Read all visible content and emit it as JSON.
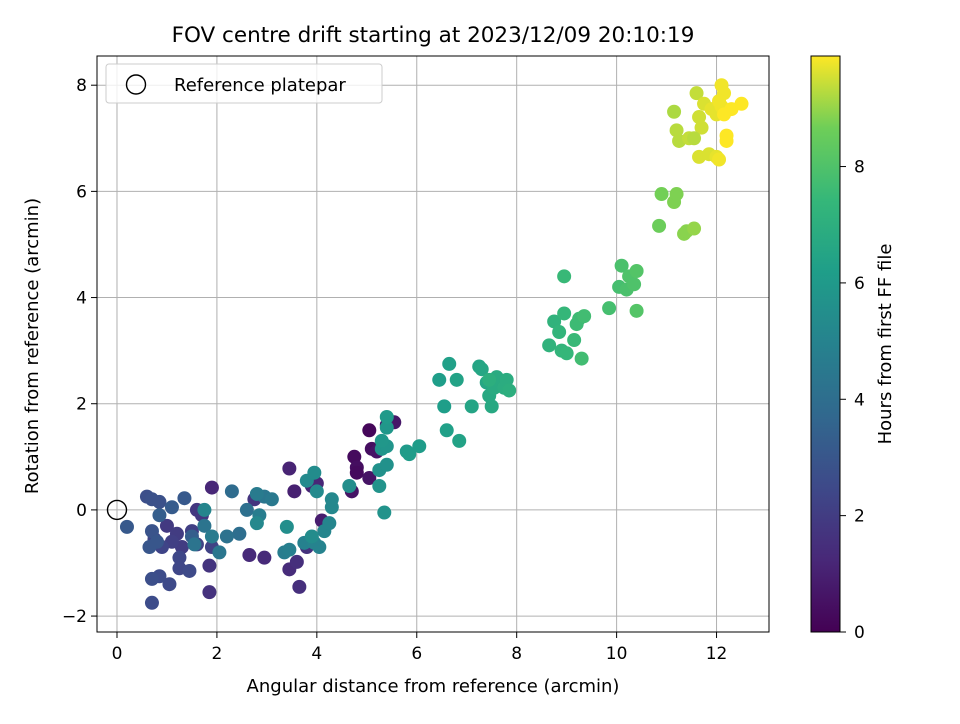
{
  "chart_data": {
    "type": "scatter",
    "title": "FOV centre drift starting at 2023/12/09 20:10:19",
    "xlabel": "Angular distance from reference (arcmin)",
    "ylabel": "Rotation from reference (arcmin)",
    "xlim": [
      -0.4,
      13.05
    ],
    "ylim": [
      -2.3,
      8.55
    ],
    "xticks": [
      0,
      2,
      4,
      6,
      8,
      10,
      12
    ],
    "yticks": [
      -2,
      0,
      2,
      4,
      6,
      8
    ],
    "grid": true,
    "legend": {
      "placement": "top-left",
      "entries": [
        {
          "label": "Reference platepar",
          "marker": "open-circle"
        }
      ]
    },
    "reference_point": {
      "x": 0,
      "y": 0
    },
    "colorbar": {
      "label": "Hours from first FF file",
      "colormap": "viridis",
      "range": [
        0,
        9.9
      ],
      "ticks": [
        0,
        2,
        4,
        6,
        8
      ]
    },
    "series": [
      {
        "color_by": "hours",
        "points": [
          {
            "x": 4.75,
            "y": 1.0,
            "c": 0.3
          },
          {
            "x": 4.8,
            "y": 0.8,
            "c": 0.4
          },
          {
            "x": 4.8,
            "y": 0.7,
            "c": 0.3
          },
          {
            "x": 5.05,
            "y": 1.5,
            "c": 0.2
          },
          {
            "x": 5.1,
            "y": 1.15,
            "c": 0.4
          },
          {
            "x": 5.2,
            "y": 1.1,
            "c": 0.6
          },
          {
            "x": 5.55,
            "y": 1.65,
            "c": 0.7
          },
          {
            "x": 5.4,
            "y": 1.6,
            "c": 0.8
          },
          {
            "x": 4.7,
            "y": 0.35,
            "c": 0.6
          },
          {
            "x": 5.05,
            "y": 0.6,
            "c": 0.6
          },
          {
            "x": 4.1,
            "y": -0.2,
            "c": 0.9
          },
          {
            "x": 3.55,
            "y": 0.35,
            "c": 1.0
          },
          {
            "x": 3.45,
            "y": 0.78,
            "c": 1.1
          },
          {
            "x": 3.9,
            "y": 0.45,
            "c": 1.1
          },
          {
            "x": 4.0,
            "y": 0.5,
            "c": 1.2
          },
          {
            "x": 1.9,
            "y": 0.42,
            "c": 1.2
          },
          {
            "x": 2.65,
            "y": -0.85,
            "c": 1.3
          },
          {
            "x": 2.95,
            "y": -0.9,
            "c": 1.3
          },
          {
            "x": 3.45,
            "y": -1.12,
            "c": 1.4
          },
          {
            "x": 3.65,
            "y": -1.45,
            "c": 1.5
          },
          {
            "x": 3.6,
            "y": -0.98,
            "c": 1.5
          },
          {
            "x": 3.8,
            "y": -0.7,
            "c": 1.6
          },
          {
            "x": 1.85,
            "y": -1.55,
            "c": 1.6
          },
          {
            "x": 1.85,
            "y": -1.05,
            "c": 1.7
          },
          {
            "x": 2.75,
            "y": 0.2,
            "c": 1.7
          },
          {
            "x": 1.6,
            "y": 0.0,
            "c": 1.8
          },
          {
            "x": 1.7,
            "y": -0.1,
            "c": 1.8
          },
          {
            "x": 1.0,
            "y": -0.3,
            "c": 1.9
          },
          {
            "x": 1.2,
            "y": -0.45,
            "c": 2.0
          },
          {
            "x": 1.3,
            "y": -0.7,
            "c": 2.0
          },
          {
            "x": 1.5,
            "y": -0.4,
            "c": 2.1
          },
          {
            "x": 1.1,
            "y": -0.6,
            "c": 2.1
          },
          {
            "x": 1.6,
            "y": -0.65,
            "c": 2.2
          },
          {
            "x": 1.9,
            "y": -0.7,
            "c": 2.2
          },
          {
            "x": 0.75,
            "y": -0.55,
            "c": 2.3
          },
          {
            "x": 0.9,
            "y": -0.7,
            "c": 2.3
          },
          {
            "x": 1.25,
            "y": -0.9,
            "c": 2.4
          },
          {
            "x": 1.25,
            "y": -1.1,
            "c": 2.4
          },
          {
            "x": 1.45,
            "y": -1.15,
            "c": 2.5
          },
          {
            "x": 1.05,
            "y": -1.4,
            "c": 2.5
          },
          {
            "x": 0.85,
            "y": -1.25,
            "c": 2.6
          },
          {
            "x": 0.7,
            "y": -1.75,
            "c": 2.6
          },
          {
            "x": 0.7,
            "y": -1.3,
            "c": 2.7
          },
          {
            "x": 0.6,
            "y": 0.25,
            "c": 2.7
          },
          {
            "x": 0.7,
            "y": 0.2,
            "c": 2.8
          },
          {
            "x": 0.85,
            "y": 0.15,
            "c": 2.8
          },
          {
            "x": 0.7,
            "y": -0.4,
            "c": 2.9
          },
          {
            "x": 0.65,
            "y": -0.7,
            "c": 3.0
          },
          {
            "x": 0.8,
            "y": -0.6,
            "c": 3.0
          },
          {
            "x": 0.2,
            "y": -0.32,
            "c": 3.1
          },
          {
            "x": 1.35,
            "y": 0.22,
            "c": 3.1
          },
          {
            "x": 1.1,
            "y": 0.05,
            "c": 3.2
          },
          {
            "x": 0.85,
            "y": -0.1,
            "c": 3.3
          },
          {
            "x": 1.5,
            "y": -0.5,
            "c": 3.3
          },
          {
            "x": 2.3,
            "y": 0.35,
            "c": 3.9
          },
          {
            "x": 2.45,
            "y": -0.45,
            "c": 4.0
          },
          {
            "x": 2.6,
            "y": 0.0,
            "c": 4.1
          },
          {
            "x": 2.2,
            "y": -0.5,
            "c": 4.2
          },
          {
            "x": 1.55,
            "y": -0.65,
            "c": 4.3
          },
          {
            "x": 1.75,
            "y": -0.3,
            "c": 4.3
          },
          {
            "x": 2.05,
            "y": -0.8,
            "c": 4.4
          },
          {
            "x": 2.95,
            "y": 0.25,
            "c": 4.4
          },
          {
            "x": 3.1,
            "y": 0.2,
            "c": 4.5
          },
          {
            "x": 1.9,
            "y": -0.5,
            "c": 4.6
          },
          {
            "x": 2.8,
            "y": 0.3,
            "c": 4.6
          },
          {
            "x": 2.85,
            "y": -0.1,
            "c": 4.7
          },
          {
            "x": 3.35,
            "y": -0.8,
            "c": 4.7
          },
          {
            "x": 3.45,
            "y": -0.75,
            "c": 4.8
          },
          {
            "x": 3.75,
            "y": -0.62,
            "c": 4.9
          },
          {
            "x": 3.95,
            "y": -0.62,
            "c": 5.0
          },
          {
            "x": 4.05,
            "y": -0.7,
            "c": 5.0
          },
          {
            "x": 4.15,
            "y": -0.4,
            "c": 5.1
          },
          {
            "x": 4.25,
            "y": -0.25,
            "c": 5.1
          },
          {
            "x": 4.3,
            "y": 0.05,
            "c": 5.2
          },
          {
            "x": 4.3,
            "y": 0.2,
            "c": 5.2
          },
          {
            "x": 4.0,
            "y": 0.35,
            "c": 5.3
          },
          {
            "x": 3.8,
            "y": 0.55,
            "c": 5.3
          },
          {
            "x": 3.95,
            "y": 0.7,
            "c": 5.4
          },
          {
            "x": 3.9,
            "y": -0.5,
            "c": 5.4
          },
          {
            "x": 3.4,
            "y": -0.32,
            "c": 5.5
          },
          {
            "x": 2.8,
            "y": -0.25,
            "c": 5.2
          },
          {
            "x": 1.75,
            "y": 0.0,
            "c": 5.1
          },
          {
            "x": 4.65,
            "y": 0.45,
            "c": 5.5
          },
          {
            "x": 5.25,
            "y": 0.75,
            "c": 5.6
          },
          {
            "x": 5.4,
            "y": 0.85,
            "c": 5.6
          },
          {
            "x": 5.25,
            "y": 0.45,
            "c": 5.7
          },
          {
            "x": 5.35,
            "y": -0.05,
            "c": 5.7
          },
          {
            "x": 5.3,
            "y": 1.15,
            "c": 5.8
          },
          {
            "x": 5.4,
            "y": 1.2,
            "c": 5.8
          },
          {
            "x": 5.3,
            "y": 1.3,
            "c": 5.9
          },
          {
            "x": 5.4,
            "y": 1.55,
            "c": 5.9
          },
          {
            "x": 5.4,
            "y": 1.75,
            "c": 6.0
          },
          {
            "x": 5.8,
            "y": 1.1,
            "c": 6.0
          },
          {
            "x": 5.85,
            "y": 1.05,
            "c": 6.1
          },
          {
            "x": 6.05,
            "y": 1.2,
            "c": 6.1
          },
          {
            "x": 6.45,
            "y": 2.45,
            "c": 6.2
          },
          {
            "x": 6.55,
            "y": 1.95,
            "c": 6.2
          },
          {
            "x": 6.6,
            "y": 1.5,
            "c": 6.3
          },
          {
            "x": 6.65,
            "y": 2.75,
            "c": 6.3
          },
          {
            "x": 6.8,
            "y": 2.45,
            "c": 6.4
          },
          {
            "x": 6.85,
            "y": 1.3,
            "c": 6.4
          },
          {
            "x": 7.1,
            "y": 1.95,
            "c": 6.5
          },
          {
            "x": 7.25,
            "y": 2.7,
            "c": 6.5
          },
          {
            "x": 7.3,
            "y": 2.65,
            "c": 6.6
          },
          {
            "x": 7.4,
            "y": 2.4,
            "c": 6.6
          },
          {
            "x": 7.45,
            "y": 2.15,
            "c": 6.7
          },
          {
            "x": 7.5,
            "y": 1.95,
            "c": 6.7
          },
          {
            "x": 7.55,
            "y": 2.3,
            "c": 6.8
          },
          {
            "x": 7.6,
            "y": 2.5,
            "c": 6.8
          },
          {
            "x": 7.75,
            "y": 2.3,
            "c": 6.9
          },
          {
            "x": 7.8,
            "y": 2.45,
            "c": 6.9
          },
          {
            "x": 7.85,
            "y": 2.25,
            "c": 7.0
          },
          {
            "x": 7.45,
            "y": 2.45,
            "c": 7.0
          },
          {
            "x": 8.65,
            "y": 3.1,
            "c": 7.2
          },
          {
            "x": 8.75,
            "y": 3.55,
            "c": 7.2
          },
          {
            "x": 8.85,
            "y": 3.35,
            "c": 7.3
          },
          {
            "x": 8.9,
            "y": 3.0,
            "c": 7.3
          },
          {
            "x": 8.95,
            "y": 3.7,
            "c": 7.4
          },
          {
            "x": 9.0,
            "y": 2.95,
            "c": 7.4
          },
          {
            "x": 8.95,
            "y": 4.4,
            "c": 7.5
          },
          {
            "x": 9.15,
            "y": 3.2,
            "c": 7.5
          },
          {
            "x": 9.2,
            "y": 3.5,
            "c": 7.6
          },
          {
            "x": 9.25,
            "y": 3.6,
            "c": 7.6
          },
          {
            "x": 9.35,
            "y": 3.65,
            "c": 7.7
          },
          {
            "x": 9.3,
            "y": 2.85,
            "c": 7.7
          },
          {
            "x": 9.85,
            "y": 3.8,
            "c": 7.8
          },
          {
            "x": 10.05,
            "y": 4.2,
            "c": 7.8
          },
          {
            "x": 10.1,
            "y": 4.6,
            "c": 7.9
          },
          {
            "x": 10.2,
            "y": 4.15,
            "c": 7.9
          },
          {
            "x": 10.25,
            "y": 4.4,
            "c": 8.0
          },
          {
            "x": 10.35,
            "y": 4.25,
            "c": 8.0
          },
          {
            "x": 10.4,
            "y": 4.5,
            "c": 8.1
          },
          {
            "x": 10.4,
            "y": 3.75,
            "c": 8.1
          },
          {
            "x": 10.85,
            "y": 5.35,
            "c": 8.6
          },
          {
            "x": 10.9,
            "y": 5.95,
            "c": 8.7
          },
          {
            "x": 11.15,
            "y": 5.8,
            "c": 8.8
          },
          {
            "x": 11.2,
            "y": 5.95,
            "c": 8.8
          },
          {
            "x": 11.35,
            "y": 5.2,
            "c": 8.9
          },
          {
            "x": 11.4,
            "y": 5.25,
            "c": 8.9
          },
          {
            "x": 11.55,
            "y": 5.3,
            "c": 9.0
          },
          {
            "x": 11.15,
            "y": 7.5,
            "c": 9.2
          },
          {
            "x": 11.2,
            "y": 7.15,
            "c": 9.3
          },
          {
            "x": 11.25,
            "y": 6.95,
            "c": 9.3
          },
          {
            "x": 11.45,
            "y": 7.0,
            "c": 9.4
          },
          {
            "x": 11.6,
            "y": 7.85,
            "c": 9.4
          },
          {
            "x": 11.65,
            "y": 7.4,
            "c": 9.5
          },
          {
            "x": 11.7,
            "y": 7.2,
            "c": 9.5
          },
          {
            "x": 11.65,
            "y": 6.65,
            "c": 9.6
          },
          {
            "x": 11.75,
            "y": 7.65,
            "c": 9.6
          },
          {
            "x": 11.85,
            "y": 6.7,
            "c": 9.6
          },
          {
            "x": 11.9,
            "y": 7.55,
            "c": 9.7
          },
          {
            "x": 12.0,
            "y": 7.45,
            "c": 9.7
          },
          {
            "x": 12.0,
            "y": 6.65,
            "c": 9.7
          },
          {
            "x": 12.05,
            "y": 6.6,
            "c": 9.8
          },
          {
            "x": 12.1,
            "y": 7.6,
            "c": 9.8
          },
          {
            "x": 12.1,
            "y": 8.0,
            "c": 9.8
          },
          {
            "x": 12.15,
            "y": 7.85,
            "c": 9.8
          },
          {
            "x": 12.2,
            "y": 7.05,
            "c": 9.9
          },
          {
            "x": 12.2,
            "y": 6.95,
            "c": 9.9
          },
          {
            "x": 12.3,
            "y": 7.55,
            "c": 9.9
          },
          {
            "x": 12.5,
            "y": 7.65,
            "c": 9.9
          },
          {
            "x": 12.15,
            "y": 7.45,
            "c": 9.9
          },
          {
            "x": 11.55,
            "y": 7.0,
            "c": 9.3
          },
          {
            "x": 12.05,
            "y": 7.7,
            "c": 9.8
          }
        ]
      }
    ]
  }
}
